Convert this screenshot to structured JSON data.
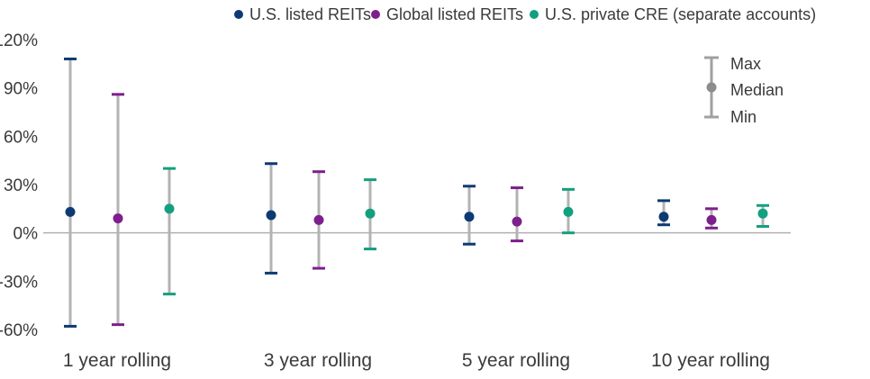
{
  "chart_data": {
    "type": "range",
    "title": "",
    "xlabel": "",
    "ylabel": "",
    "y_unit": "%",
    "ylim": [
      -60,
      120
    ],
    "yticks": [
      120,
      90,
      60,
      30,
      0,
      -30,
      -60
    ],
    "ytick_labels": [
      "120%",
      "90%",
      "60%",
      "30%",
      "0%",
      "-30%",
      "-60%"
    ],
    "grid": false,
    "legend_position": "top",
    "categories": [
      "1 year rolling",
      "3 year rolling",
      "5 year rolling",
      "10 year rolling"
    ],
    "series": [
      {
        "name": "U.S. listed REITs",
        "color": "#0d3a73",
        "max": [
          108,
          43,
          29,
          20
        ],
        "median": [
          13,
          11,
          10,
          10
        ],
        "min": [
          -58,
          -25,
          -7,
          5
        ]
      },
      {
        "name": "Global listed REITs",
        "color": "#7d1f8c",
        "max": [
          86,
          38,
          28,
          15
        ],
        "median": [
          9,
          8,
          7,
          8
        ],
        "min": [
          -57,
          -22,
          -5,
          3
        ]
      },
      {
        "name": "U.S. private CRE (separate accounts)",
        "color": "#12a07f",
        "max": [
          40,
          33,
          27,
          17
        ],
        "median": [
          15,
          12,
          13,
          12
        ],
        "min": [
          -38,
          -10,
          0,
          4
        ]
      }
    ],
    "key": {
      "max_label": "Max",
      "median_label": "Median",
      "min_label": "Min"
    }
  }
}
